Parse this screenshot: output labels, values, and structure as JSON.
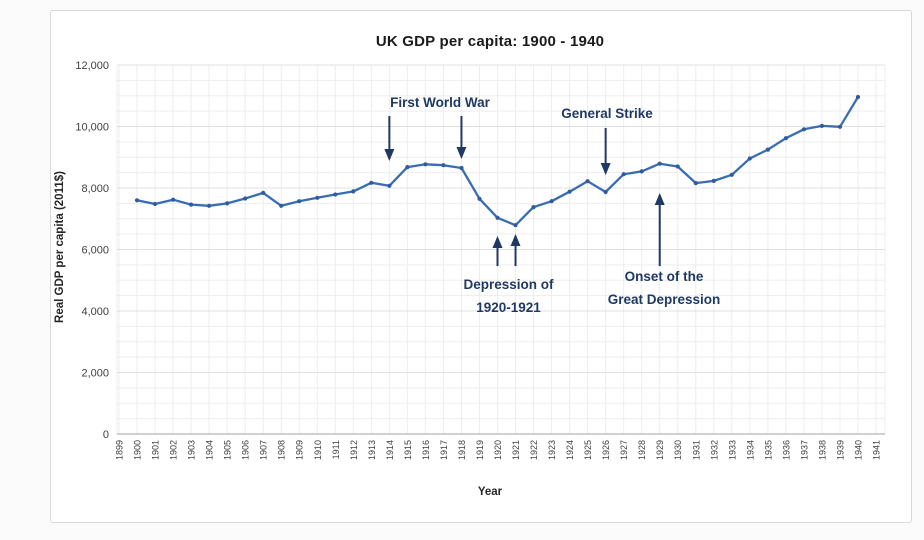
{
  "title": "UK GDP per capita: 1900 - 1940",
  "axes": {
    "y_label": "Real GDP per capita (2011$)",
    "x_label": "Year"
  },
  "annotations": {
    "first_world_war": "First World War",
    "general_strike": "General Strike",
    "depression_line1": "Depression of",
    "depression_line2": "1920-1921",
    "onset_line1": "Onset of the",
    "onset_line2": "Great Depression"
  },
  "colors": {
    "line": "#3a6cb4",
    "marker": "#2e5c9e",
    "annotation": "#1f3864",
    "grid_minor": "#ededed",
    "grid_major": "#e0e0e0",
    "axis_line": "#b3b3b3",
    "tick_text": "#404040",
    "title_text": "#1a1a1a"
  },
  "chart_data": {
    "type": "line",
    "title": "UK GDP per capita: 1900 - 1940",
    "xlabel": "Year",
    "ylabel": "Real GDP per capita (2011$)",
    "xlim": [
      1899,
      1941
    ],
    "ylim": [
      0,
      12000
    ],
    "grid": "on",
    "y_major_step": 2000,
    "y_minor_step": 500,
    "legend": "none",
    "x": [
      1900,
      1901,
      1902,
      1903,
      1904,
      1905,
      1906,
      1907,
      1908,
      1909,
      1910,
      1911,
      1912,
      1913,
      1914,
      1915,
      1916,
      1917,
      1918,
      1919,
      1920,
      1921,
      1922,
      1923,
      1924,
      1925,
      1926,
      1927,
      1928,
      1929,
      1930,
      1931,
      1932,
      1933,
      1934,
      1935,
      1936,
      1937,
      1938,
      1939,
      1940
    ],
    "values": [
      7600,
      7480,
      7620,
      7460,
      7420,
      7500,
      7660,
      7840,
      7420,
      7570,
      7680,
      7790,
      7890,
      8170,
      8070,
      8680,
      8770,
      8740,
      8650,
      7650,
      7030,
      6790,
      7380,
      7570,
      7880,
      8220,
      7870,
      8450,
      8540,
      8790,
      8700,
      8160,
      8230,
      8430,
      8960,
      9250,
      9620,
      9910,
      10020,
      9990,
      10960
    ],
    "x_ticks": [
      "1899",
      "1900",
      "1901",
      "1902",
      "1903",
      "1904",
      "1905",
      "1906",
      "1907",
      "1908",
      "1909",
      "1910",
      "1911",
      "1912",
      "1913",
      "1914",
      "1915",
      "1916",
      "1917",
      "1918",
      "1919",
      "1920",
      "1921",
      "1922",
      "1923",
      "1924",
      "1925",
      "1926",
      "1927",
      "1928",
      "1929",
      "1930",
      "1931",
      "1932",
      "1933",
      "1934",
      "1935",
      "1936",
      "1937",
      "1938",
      "1939",
      "1940",
      "1941"
    ],
    "y_ticks": [
      "0",
      "2,000",
      "4,000",
      "6,000",
      "8,000",
      "10,000",
      "12,000"
    ],
    "annotations": [
      {
        "text": "First World War",
        "arrows": "two down arrows at 1914 and 1918"
      },
      {
        "text": "General Strike",
        "arrows": "down arrow at 1926"
      },
      {
        "text": "Depression of 1920-1921",
        "arrows": "two up arrows at 1920 and 1921"
      },
      {
        "text": "Onset of the Great Depression",
        "arrows": "up arrow at 1929"
      }
    ]
  }
}
